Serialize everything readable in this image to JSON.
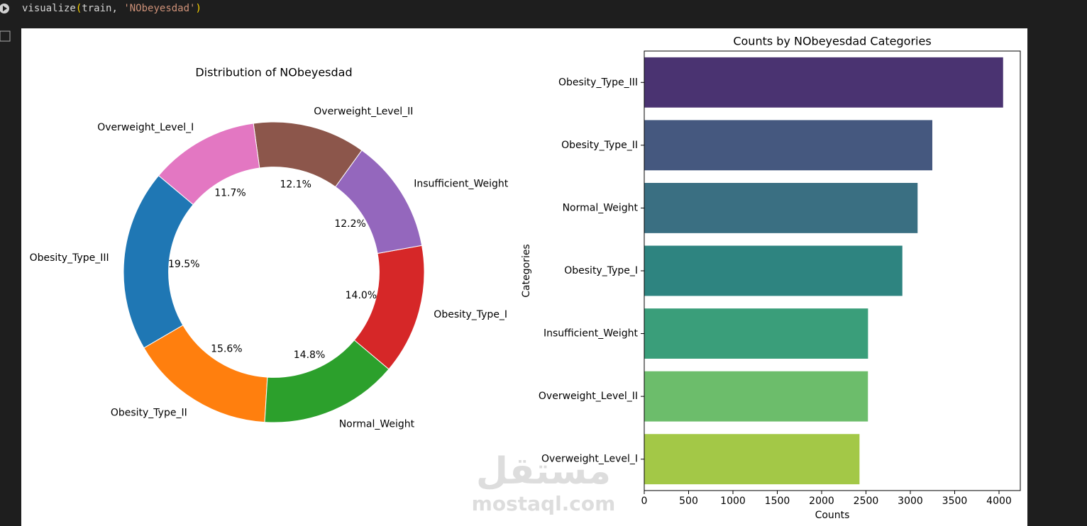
{
  "cell": {
    "code_tokens": [
      "visualize",
      "(",
      "train, ",
      "'NObeyesdad'",
      ")"
    ]
  },
  "watermark": {
    "arabic": "مستقل",
    "latin": "mostaql.com"
  },
  "chart_data": [
    {
      "type": "pie",
      "title": "Distribution of NObeyesdad",
      "categories": [
        "Obesity_Type_III",
        "Obesity_Type_II",
        "Normal_Weight",
        "Obesity_Type_I",
        "Insufficient_Weight",
        "Overweight_Level_II",
        "Overweight_Level_I"
      ],
      "values": [
        19.5,
        15.6,
        14.8,
        14.0,
        12.2,
        12.1,
        11.7
      ],
      "value_labels": [
        "19.5%",
        "15.6%",
        "14.8%",
        "14.0%",
        "12.2%",
        "12.1%",
        "11.7%"
      ],
      "colors": [
        "#1f77b4",
        "#ff7f0e",
        "#2ca02c",
        "#d62728",
        "#9467bd",
        "#8c564b",
        "#e377c2"
      ]
    },
    {
      "type": "barh",
      "title": "Counts by NObeyesdad Categories",
      "xlabel": "Counts",
      "ylabel": "Categories",
      "categories": [
        "Obesity_Type_III",
        "Obesity_Type_II",
        "Normal_Weight",
        "Obesity_Type_I",
        "Insufficient_Weight",
        "Overweight_Level_II",
        "Overweight_Level_I"
      ],
      "values": [
        4046,
        3248,
        3082,
        2910,
        2523,
        2522,
        2427
      ],
      "colors": [
        "#4a3371",
        "#45587f",
        "#3a6f82",
        "#2e8480",
        "#3a9e7a",
        "#6cbd6b",
        "#a3c847"
      ],
      "xlim": [
        0,
        4240
      ],
      "xticks": [
        0,
        500,
        1000,
        1500,
        2000,
        2500,
        3000,
        3500,
        4000
      ]
    }
  ]
}
